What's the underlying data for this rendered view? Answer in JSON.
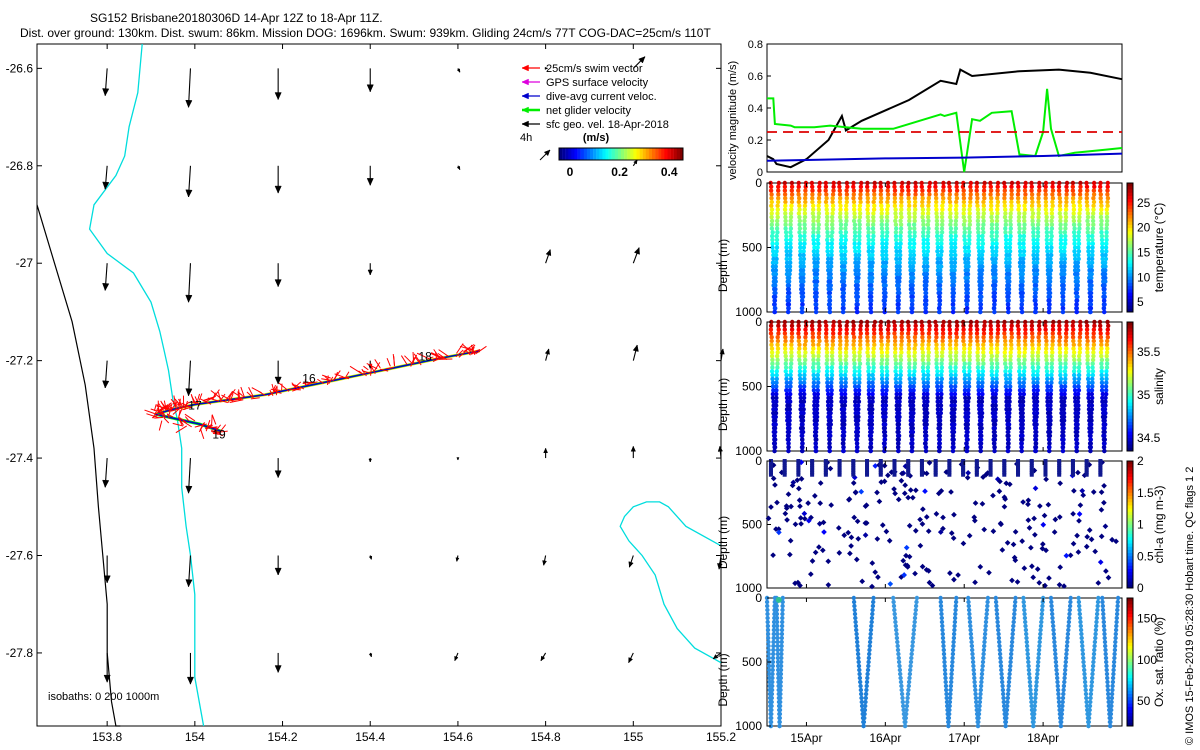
{
  "header": {
    "line1": "SG152 Brisbane20180306D 14-Apr 12Z to 18-Apr 11Z.",
    "line2": "Dist. over ground: 130km. Dist. swum: 86km. Mission DOG: 1696km. Swum: 939km. Gliding 24cm/s 77T COG-DAC=25cm/s 110T"
  },
  "credit": "© IMOS 15-Feb-2019 05:28:30 Hobart time. QC flags 1 2",
  "colors": {
    "swim": "#ff0000",
    "gps": "#dd00dd",
    "dac": "#0000cc",
    "net": "#00ee00",
    "sfc": "#000000",
    "coast": "#00dddd",
    "isobath": "#000000",
    "dash": "#dd0000"
  },
  "chart_data": [
    {
      "id": "map",
      "type": "scatter",
      "title": "",
      "xlabel": "",
      "ylabel": "",
      "xlim": [
        153.64,
        155.2
      ],
      "ylim": [
        -27.95,
        -26.55
      ],
      "x_ticks": [
        "153.8",
        "154",
        "154.2",
        "154.4",
        "154.6",
        "154.8",
        "155",
        "155.2"
      ],
      "x_tick_values": [
        153.8,
        154.0,
        154.2,
        154.4,
        154.6,
        154.8,
        155.0,
        155.2
      ],
      "y_ticks": [
        "-26.6",
        "-26.8",
        "-27",
        "-27.2",
        "-27.4",
        "-27.6",
        "-27.8"
      ],
      "y_tick_values": [
        -26.6,
        -26.8,
        -27.0,
        -27.2,
        -27.4,
        -27.6,
        -27.8
      ],
      "legend": {
        "placement": "top-right",
        "items": [
          "25cm/s swim vector",
          "GPS surface velocity",
          "dive-avg current veloc.",
          "net glider velocity",
          "sfc geo. vel. 18-Apr-2018"
        ],
        "scale_label": "4h"
      },
      "colorbar": {
        "label": "(m/s)",
        "ticks": [
          "0",
          "0.2",
          "0.4"
        ],
        "range": [
          0,
          0.5
        ]
      },
      "isobath_label": "isobaths: 0   200   1000m",
      "track_labels": [
        {
          "text": "17",
          "lon": 153.985,
          "lat": -27.3
        },
        {
          "text": "16",
          "lon": 154.245,
          "lat": -27.245
        },
        {
          "text": "19",
          "lon": 154.04,
          "lat": -27.36
        },
        {
          "text": "18",
          "lon": 154.51,
          "lat": -27.2
        }
      ],
      "geo_vectors": {
        "description": "sfc geo. vel. arrows, u/v in degrees displacement",
        "lons": [
          153.8,
          153.99,
          154.19,
          154.4,
          154.6,
          154.8,
          155.0,
          155.2
        ],
        "lats": [
          -26.6,
          -26.8,
          -27.0,
          -27.2,
          -27.4,
          -27.6,
          -27.8
        ],
        "u": [
          [
            -0.005,
            -0.005,
            0.0,
            0.0,
            0.005,
            0.005,
            0.03,
            0.0
          ],
          [
            -0.005,
            -0.005,
            0.0,
            0.0,
            0.005,
            0.0,
            0.01,
            0.0
          ],
          [
            -0.005,
            -0.005,
            0.0,
            0.0,
            0.0,
            0.012,
            0.015,
            0.0
          ],
          [
            -0.005,
            -0.005,
            0.0,
            0.0,
            0.0,
            0.008,
            0.01,
            0.005
          ],
          [
            -0.005,
            -0.005,
            0.0,
            0.0,
            0.0,
            0.0,
            0.0,
            -0.003
          ],
          [
            0.0,
            -0.005,
            0.0,
            0.003,
            -0.003,
            -0.005,
            -0.01,
            -0.005
          ],
          [
            0.0,
            0.0,
            0.0,
            0.003,
            -0.008,
            -0.012,
            -0.012,
            -0.02
          ]
        ],
        "v": [
          [
            -0.07,
            -0.1,
            -0.08,
            -0.06,
            -0.01,
            0.0,
            0.03,
            0.0
          ],
          [
            -0.06,
            -0.08,
            -0.07,
            -0.05,
            -0.01,
            0.0,
            0.015,
            0.0
          ],
          [
            -0.07,
            -0.1,
            -0.06,
            -0.03,
            0.0,
            0.035,
            0.04,
            0.0
          ],
          [
            -0.07,
            -0.09,
            -0.06,
            -0.02,
            0.0,
            0.03,
            0.04,
            0.03
          ],
          [
            -0.075,
            -0.09,
            -0.05,
            -0.01,
            -0.005,
            0.025,
            0.03,
            0.03
          ],
          [
            -0.07,
            -0.08,
            -0.05,
            -0.01,
            -0.015,
            -0.025,
            -0.03,
            -0.035
          ],
          [
            -0.075,
            -0.08,
            -0.05,
            -0.01,
            -0.02,
            -0.02,
            -0.025,
            -0.015
          ]
        ]
      },
      "coastline_0m": {
        "lon": [
          153.64,
          153.68,
          153.72,
          153.75,
          153.77,
          153.78,
          153.79,
          153.8,
          153.8,
          153.81,
          153.82,
          153.83
        ],
        "lat": [
          -26.88,
          -27.0,
          -27.12,
          -27.25,
          -27.38,
          -27.5,
          -27.6,
          -27.7,
          -27.8,
          -27.9,
          -27.95,
          -27.95
        ]
      },
      "isobath_200m": {
        "lon": [
          153.88,
          153.87,
          153.85,
          153.84,
          153.82,
          153.77,
          153.76,
          153.8,
          153.86,
          153.9,
          153.92,
          153.93,
          153.94,
          153.95,
          153.96,
          153.97,
          153.97,
          153.98,
          153.99,
          154.0,
          154.0,
          154.0,
          154.02
        ],
        "lat": [
          -26.55,
          -26.65,
          -26.72,
          -26.78,
          -26.82,
          -26.88,
          -26.93,
          -26.98,
          -27.02,
          -27.08,
          -27.14,
          -27.18,
          -27.22,
          -27.28,
          -27.32,
          -27.38,
          -27.46,
          -27.54,
          -27.6,
          -27.68,
          -27.76,
          -27.85,
          -27.95
        ]
      },
      "coastline_1000m_east": {
        "lon": [
          155.2,
          155.12,
          155.08,
          155.06,
          155.05,
          155.03,
          155.0,
          154.98,
          154.97,
          154.99,
          155.02,
          155.05,
          155.07,
          155.1,
          155.14,
          155.2
        ],
        "lat": [
          -27.58,
          -27.54,
          -27.5,
          -27.49,
          -27.49,
          -27.49,
          -27.5,
          -27.52,
          -27.54,
          -27.57,
          -27.6,
          -27.64,
          -27.7,
          -27.75,
          -27.79,
          -27.82
        ]
      },
      "glider_track": {
        "lon": [
          153.91,
          153.95,
          154.0,
          154.08,
          154.16,
          154.24,
          154.32,
          154.4,
          154.48,
          154.56,
          154.62,
          154.65
        ],
        "lat": [
          -27.31,
          -27.3,
          -27.29,
          -27.28,
          -27.27,
          -27.255,
          -27.24,
          -27.225,
          -27.21,
          -27.195,
          -27.185,
          -27.18
        ]
      },
      "return_track": {
        "lon": [
          153.91,
          153.96,
          154.01,
          154.06
        ],
        "lat": [
          -27.31,
          -27.32,
          -27.33,
          -27.345
        ]
      }
    },
    {
      "id": "velocity",
      "type": "line",
      "ylabel": "velocity magnitude (m/s)",
      "xlim": [
        0,
        4.5
      ],
      "ylim": [
        0,
        0.8
      ],
      "y_ticks": [
        "0",
        "0.2",
        "0.4",
        "0.6",
        "0.8"
      ],
      "y_tick_values": [
        0,
        0.2,
        0.4,
        0.6,
        0.8
      ],
      "series": [
        {
          "name": "glider net velocity",
          "color": "#000000",
          "x": [
            0.0,
            0.08,
            0.12,
            0.3,
            0.5,
            0.78,
            0.95,
            1.0,
            1.2,
            1.8,
            2.2,
            2.4,
            2.45,
            2.6,
            3.2,
            3.7,
            4.1,
            4.5
          ],
          "y": [
            0.1,
            0.08,
            0.05,
            0.03,
            0.08,
            0.2,
            0.35,
            0.26,
            0.32,
            0.45,
            0.57,
            0.55,
            0.64,
            0.6,
            0.63,
            0.64,
            0.62,
            0.58
          ]
        },
        {
          "name": "GPS surface velocity",
          "color": "#00ee00",
          "x": [
            0.0,
            0.08,
            0.1,
            0.3,
            0.35,
            0.6,
            0.8,
            1.0,
            1.2,
            1.6,
            2.2,
            2.25,
            2.4,
            2.5,
            2.6,
            2.7,
            2.85,
            3.1,
            3.2,
            3.4,
            3.5,
            3.55,
            3.6,
            3.7,
            3.9,
            4.3,
            4.5
          ],
          "y": [
            0.46,
            0.46,
            0.3,
            0.29,
            0.28,
            0.28,
            0.29,
            0.28,
            0.27,
            0.27,
            0.36,
            0.35,
            0.37,
            0.0,
            0.33,
            0.32,
            0.37,
            0.38,
            0.11,
            0.1,
            0.25,
            0.52,
            0.27,
            0.1,
            0.12,
            0.14,
            0.15
          ]
        },
        {
          "name": "dive-avg current",
          "color": "#0000cc",
          "x": [
            0.0,
            0.5,
            1.5,
            2.5,
            3.5,
            4.5
          ],
          "y": [
            0.07,
            0.075,
            0.085,
            0.09,
            0.1,
            0.115
          ]
        },
        {
          "name": "25cm/s swim",
          "color": "#dd0000",
          "dashed": true,
          "x": [
            0.0,
            4.5
          ],
          "y": [
            0.25,
            0.25
          ]
        }
      ]
    },
    {
      "id": "temperature",
      "type": "scatter",
      "ylabel": "Depth (m)",
      "colorbar_label": "temperature (°C)",
      "colorbar_ticks": [
        "25",
        "20",
        "15",
        "10",
        "5"
      ],
      "colorbar_values": [
        25,
        20,
        15,
        10,
        5
      ],
      "crange": [
        3,
        29
      ],
      "ylim": [
        1000,
        0
      ],
      "y_ticks": [
        "0",
        "500",
        "1000"
      ],
      "n_dives": 25,
      "surface_value": 27,
      "bottom_value": 5
    },
    {
      "id": "salinity",
      "type": "scatter",
      "ylabel": "Depth (m)",
      "colorbar_label": "salinity",
      "colorbar_ticks": [
        "35.5",
        "35",
        "34.5"
      ],
      "colorbar_values": [
        35.5,
        35.0,
        34.5
      ],
      "crange": [
        34.35,
        35.85
      ],
      "ylim": [
        1000,
        0
      ],
      "y_ticks": [
        "0",
        "500",
        "1000"
      ],
      "n_dives": 25,
      "surface_value": 35.8,
      "bottom_value": 34.45
    },
    {
      "id": "chla",
      "type": "scatter",
      "ylabel": "Depth (m)",
      "colorbar_label": "chl-a (mg m-3)",
      "colorbar_ticks": [
        "2",
        "1.5",
        "1",
        "0.5",
        "0"
      ],
      "colorbar_values": [
        2,
        1.5,
        1,
        0.5,
        0
      ],
      "crange": [
        0,
        2
      ],
      "ylim": [
        1000,
        0
      ],
      "y_ticks": [
        "0",
        "500",
        "1000"
      ],
      "n_dives": 25
    },
    {
      "id": "oxygen",
      "type": "scatter",
      "ylabel": "Depth (m)",
      "colorbar_label": "Ox. sat. ratio (%)",
      "colorbar_ticks": [
        "150",
        "100",
        "50"
      ],
      "colorbar_values": [
        150,
        100,
        50
      ],
      "crange": [
        20,
        175
      ],
      "ylim": [
        1000,
        0
      ],
      "y_ticks": [
        "0",
        "500",
        "1000"
      ],
      "x_ticks": [
        "15Apr",
        "16Apr",
        "17Apr",
        "18Apr"
      ],
      "x_tick_values": [
        0.5,
        1.5,
        2.5,
        3.5
      ],
      "n_dives": 25
    }
  ]
}
